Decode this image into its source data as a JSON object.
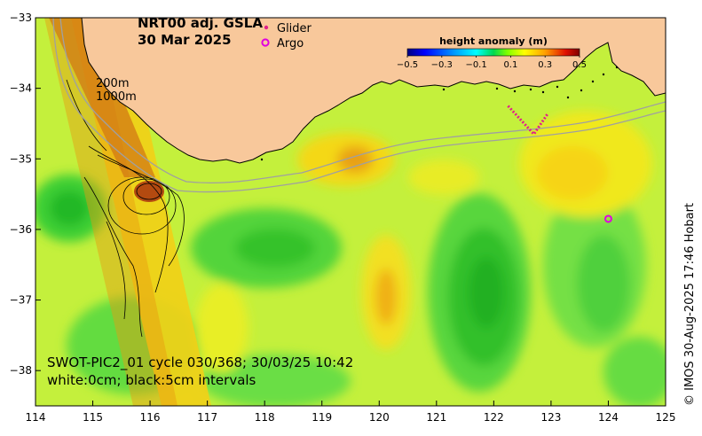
{
  "map": {
    "title_line1": "NRT00 adj. GSLA",
    "title_line2": "30 Mar 2025",
    "legend": {
      "glider_label": "Glider",
      "argo_label": "Argo",
      "glider_color": "#e0208a",
      "argo_color": "#e000e0"
    },
    "depth_labels": [
      "200m",
      "1000m"
    ],
    "swot_line1": "SWOT-PIC2_01 cycle 030/368; 30/03/25 10:42",
    "swot_line2": "white:0cm; black:5cm intervals",
    "credit": "© IMOS 30-Aug-2025 17:46 Hobart",
    "colorbar": {
      "title": "height anomaly (m)",
      "tick_labels": [
        "−0.5",
        "−0.3",
        "−0.1",
        "0.1",
        "0.3",
        "0.5"
      ],
      "ticks": [
        -0.5,
        -0.3,
        -0.1,
        0.1,
        0.3,
        0.5
      ],
      "range": [
        -0.5,
        0.5
      ],
      "colors": [
        "#00007f",
        "#0000ff",
        "#007fff",
        "#00ffff",
        "#00d85a",
        "#7fff00",
        "#c8f028",
        "#ffff00",
        "#ffb000",
        "#ff6000",
        "#d00000",
        "#7f0000"
      ]
    },
    "x_axis": {
      "range": [
        114,
        125
      ],
      "ticks": [
        114,
        115,
        116,
        117,
        118,
        119,
        120,
        121,
        122,
        123,
        124,
        125
      ],
      "tick_labels": [
        "114",
        "115",
        "116",
        "117",
        "118",
        "119",
        "120",
        "121",
        "122",
        "123",
        "124",
        "125"
      ]
    },
    "y_axis": {
      "range": [
        -38.5,
        -33
      ],
      "ticks": [
        -33,
        -34,
        -35,
        -36,
        -37,
        -38
      ],
      "tick_labels": [
        "−33",
        "−34",
        "−35",
        "−36",
        "−37",
        "−38"
      ]
    },
    "colors": {
      "land": "#f8c89b",
      "ocean_base": "#c4f03c",
      "bathymetry": "#a0a0a0"
    },
    "glider_track": [
      [
        122.25,
        -34.25
      ],
      [
        122.7,
        -34.65
      ],
      [
        122.95,
        -34.35
      ]
    ],
    "argo_floats": [
      [
        124.0,
        -35.85
      ]
    ]
  }
}
